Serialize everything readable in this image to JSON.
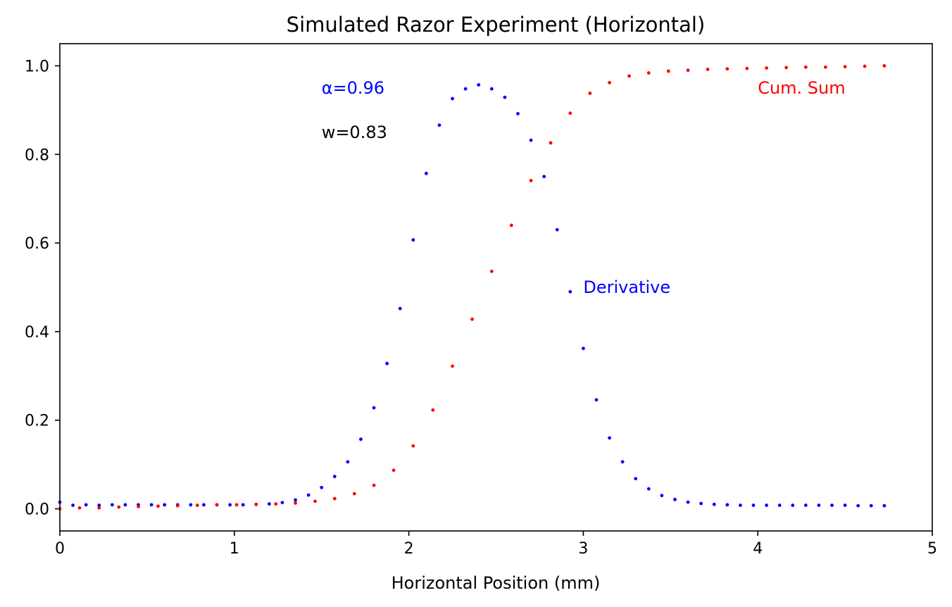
{
  "chart_data": {
    "type": "scatter",
    "title": "Simulated Razor Experiment (Horizontal)",
    "xlabel": "Horizontal Position (mm)",
    "ylabel": "",
    "xlim": [
      0,
      5
    ],
    "ylim": [
      -0.05,
      1.05
    ],
    "grid": false,
    "x_ticks": [
      {
        "value": 0,
        "label": "0"
      },
      {
        "value": 1,
        "label": "1"
      },
      {
        "value": 2,
        "label": "2"
      },
      {
        "value": 3,
        "label": "3"
      },
      {
        "value": 4,
        "label": "4"
      },
      {
        "value": 5,
        "label": "5"
      }
    ],
    "y_ticks": [
      {
        "value": 0.0,
        "label": "0.0"
      },
      {
        "value": 0.2,
        "label": "0.2"
      },
      {
        "value": 0.4,
        "label": "0.4"
      },
      {
        "value": 0.6,
        "label": "0.6"
      },
      {
        "value": 0.8,
        "label": "0.8"
      },
      {
        "value": 1.0,
        "label": "1.0"
      }
    ],
    "series": [
      {
        "color": "#0000ff",
        "points": [
          [
            0.0,
            0.015
          ],
          [
            0.075,
            0.008
          ],
          [
            0.15,
            0.009
          ],
          [
            0.225,
            0.008
          ],
          [
            0.3,
            0.009
          ],
          [
            0.375,
            0.009
          ],
          [
            0.45,
            0.009
          ],
          [
            0.525,
            0.009
          ],
          [
            0.6,
            0.009
          ],
          [
            0.675,
            0.009
          ],
          [
            0.75,
            0.009
          ],
          [
            0.825,
            0.009
          ],
          [
            0.9,
            0.009
          ],
          [
            0.975,
            0.009
          ],
          [
            1.05,
            0.009
          ],
          [
            1.125,
            0.01
          ],
          [
            1.2,
            0.011
          ],
          [
            1.275,
            0.014
          ],
          [
            1.35,
            0.02
          ],
          [
            1.425,
            0.031
          ],
          [
            1.5,
            0.048
          ],
          [
            1.575,
            0.073
          ],
          [
            1.65,
            0.106
          ],
          [
            1.725,
            0.157
          ],
          [
            1.8,
            0.228
          ],
          [
            1.875,
            0.328
          ],
          [
            1.95,
            0.452
          ],
          [
            2.025,
            0.607
          ],
          [
            2.1,
            0.757
          ],
          [
            2.175,
            0.866
          ],
          [
            2.25,
            0.926
          ],
          [
            2.325,
            0.948
          ],
          [
            2.4,
            0.957
          ],
          [
            2.475,
            0.948
          ],
          [
            2.55,
            0.929
          ],
          [
            2.625,
            0.892
          ],
          [
            2.7,
            0.832
          ],
          [
            2.775,
            0.75
          ],
          [
            2.85,
            0.63
          ],
          [
            2.925,
            0.49
          ],
          [
            3.0,
            0.362
          ],
          [
            3.075,
            0.246
          ],
          [
            3.15,
            0.16
          ],
          [
            3.225,
            0.106
          ],
          [
            3.3,
            0.068
          ],
          [
            3.375,
            0.045
          ],
          [
            3.45,
            0.03
          ],
          [
            3.525,
            0.021
          ],
          [
            3.6,
            0.015
          ],
          [
            3.675,
            0.012
          ],
          [
            3.75,
            0.01
          ],
          [
            3.825,
            0.009
          ],
          [
            3.9,
            0.008
          ],
          [
            3.975,
            0.008
          ],
          [
            4.05,
            0.008
          ],
          [
            4.125,
            0.008
          ],
          [
            4.2,
            0.008
          ],
          [
            4.275,
            0.008
          ],
          [
            4.35,
            0.008
          ],
          [
            4.425,
            0.008
          ],
          [
            4.5,
            0.008
          ],
          [
            4.575,
            0.007
          ],
          [
            4.65,
            0.007
          ],
          [
            4.725,
            0.007
          ]
        ]
      },
      {
        "color": "#ff0000",
        "points": [
          [
            0.0,
            0.0
          ],
          [
            0.113,
            0.002
          ],
          [
            0.225,
            0.002
          ],
          [
            0.338,
            0.004
          ],
          [
            0.45,
            0.005
          ],
          [
            0.563,
            0.006
          ],
          [
            0.675,
            0.007
          ],
          [
            0.788,
            0.008
          ],
          [
            0.9,
            0.009
          ],
          [
            1.013,
            0.009
          ],
          [
            1.125,
            0.01
          ],
          [
            1.238,
            0.011
          ],
          [
            1.35,
            0.013
          ],
          [
            1.463,
            0.017
          ],
          [
            1.575,
            0.023
          ],
          [
            1.688,
            0.034
          ],
          [
            1.8,
            0.053
          ],
          [
            1.913,
            0.087
          ],
          [
            2.025,
            0.142
          ],
          [
            2.138,
            0.223
          ],
          [
            2.25,
            0.322
          ],
          [
            2.363,
            0.428
          ],
          [
            2.475,
            0.536
          ],
          [
            2.588,
            0.64
          ],
          [
            2.7,
            0.741
          ],
          [
            2.813,
            0.826
          ],
          [
            2.925,
            0.893
          ],
          [
            3.038,
            0.938
          ],
          [
            3.15,
            0.962
          ],
          [
            3.263,
            0.977
          ],
          [
            3.375,
            0.984
          ],
          [
            3.488,
            0.988
          ],
          [
            3.6,
            0.99
          ],
          [
            3.713,
            0.992
          ],
          [
            3.825,
            0.993
          ],
          [
            3.938,
            0.994
          ],
          [
            4.05,
            0.995
          ],
          [
            4.163,
            0.996
          ],
          [
            4.275,
            0.997
          ],
          [
            4.388,
            0.997
          ],
          [
            4.5,
            0.998
          ],
          [
            4.613,
            0.999
          ],
          [
            4.725,
            1.0
          ]
        ]
      }
    ],
    "annotations": [
      {
        "text": "α=0.96",
        "x": 1.5,
        "y": 0.95,
        "color": "#0000ff"
      },
      {
        "text": "w=0.83",
        "x": 1.5,
        "y": 0.85,
        "color": "#000000"
      },
      {
        "text": "Cum. Sum",
        "x": 4.0,
        "y": 0.95,
        "color": "#ff0000"
      },
      {
        "text": "Derivative",
        "x": 3.0,
        "y": 0.5,
        "color": "#0000ff"
      }
    ]
  }
}
